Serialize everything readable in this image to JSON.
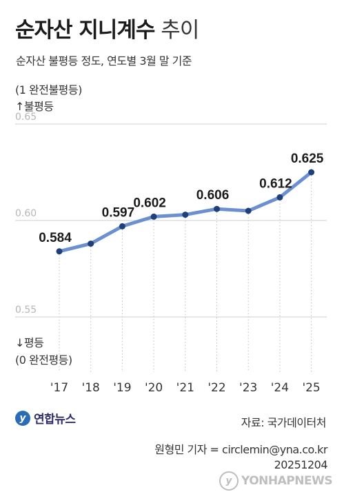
{
  "header": {
    "title_bold": "순자산 지니계수",
    "title_light": "추이",
    "subtitle": "순자산 불평등 정도, 연도별 3월 말 기준"
  },
  "axis_notes": {
    "top_line1": "(1 완전불평등)",
    "top_line2": "↑불평등",
    "bottom_line1": "↓평등",
    "bottom_line2": "(0 완전평등)"
  },
  "chart_data": {
    "type": "line",
    "categories": [
      "'17",
      "'18",
      "'19",
      "'20",
      "'21",
      "'22",
      "'23",
      "'24",
      "'25"
    ],
    "series": [
      {
        "values": [
          0.584,
          0.588,
          0.597,
          0.602,
          0.603,
          0.606,
          0.605,
          0.612,
          0.625
        ]
      }
    ],
    "data_labels": [
      "0.584",
      "",
      "0.597",
      "0.602",
      "",
      "0.606",
      "",
      "0.612",
      "0.625"
    ],
    "yticks": [
      "0.65",
      "0.60",
      "0.55"
    ],
    "ylim": [
      0.55,
      0.65
    ],
    "grid": true,
    "line_color": "#6b8fcf",
    "marker_color": "#1f3f7a"
  },
  "footer": {
    "logo_text": "연합뉴스",
    "source": "자료: 국가데이터처",
    "reporter": "원형민 기자 = circlemin@yna.co.kr",
    "date": "20251204",
    "watermark": "YONHAPNEWS"
  }
}
